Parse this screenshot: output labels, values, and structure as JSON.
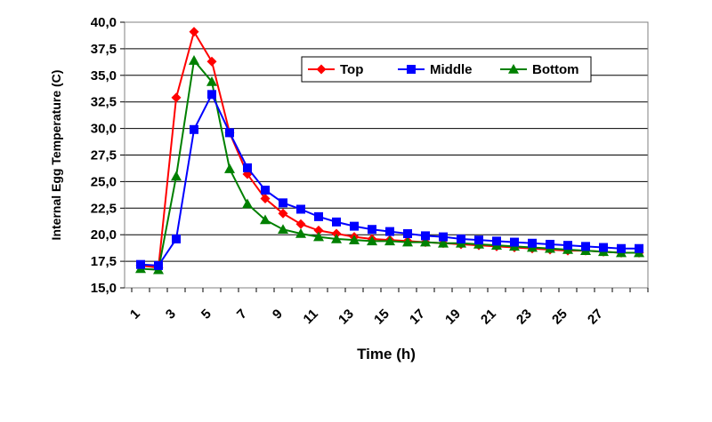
{
  "chart_data": {
    "type": "line",
    "title": "",
    "xlabel": "Time (h)",
    "ylabel": "Internal Egg Temperature (C)",
    "x": [
      1,
      2,
      3,
      4,
      5,
      6,
      7,
      8,
      9,
      10,
      11,
      12,
      13,
      14,
      15,
      16,
      17,
      18,
      19,
      20,
      21,
      22,
      23,
      24,
      25,
      26,
      27,
      28,
      29
    ],
    "x_tick_labels": [
      "1",
      "3",
      "5",
      "7",
      "9",
      "11",
      "13",
      "15",
      "17",
      "19",
      "21",
      "23",
      "25",
      "27"
    ],
    "x_tick_values": [
      1,
      3,
      5,
      7,
      9,
      11,
      13,
      15,
      17,
      19,
      21,
      23,
      25,
      27
    ],
    "xlim": [
      1,
      29
    ],
    "ylim": [
      15,
      40
    ],
    "y_tick_values": [
      15,
      17.5,
      20,
      22.5,
      25,
      27.5,
      30,
      32.5,
      35,
      37.5,
      40
    ],
    "y_tick_labels": [
      "15,0",
      "17,5",
      "20,0",
      "22,5",
      "25,0",
      "27,5",
      "30,0",
      "32,5",
      "35,0",
      "37,5",
      "40,0"
    ],
    "grid": "horizontal",
    "legend_position": "top-right",
    "series": [
      {
        "name": "Top",
        "color": "#ff0000",
        "marker": "diamond",
        "values": [
          17.1,
          16.9,
          32.9,
          39.1,
          36.3,
          29.6,
          25.7,
          23.4,
          22.0,
          21.0,
          20.4,
          20.1,
          19.8,
          19.6,
          19.5,
          19.4,
          19.3,
          19.2,
          19.1,
          19.0,
          18.9,
          18.8,
          18.7,
          18.6,
          18.5,
          18.5,
          18.4,
          18.3,
          18.3
        ]
      },
      {
        "name": "Middle",
        "color": "#0000ff",
        "marker": "square",
        "values": [
          17.2,
          17.1,
          19.6,
          29.9,
          33.2,
          29.6,
          26.3,
          24.2,
          23.0,
          22.4,
          21.7,
          21.2,
          20.8,
          20.5,
          20.3,
          20.1,
          19.9,
          19.8,
          19.6,
          19.5,
          19.4,
          19.3,
          19.2,
          19.1,
          19.0,
          18.9,
          18.8,
          18.7,
          18.7
        ]
      },
      {
        "name": "Bottom",
        "color": "#008000",
        "marker": "triangle",
        "values": [
          16.8,
          16.7,
          25.5,
          36.4,
          34.4,
          26.2,
          22.9,
          21.4,
          20.5,
          20.1,
          19.8,
          19.6,
          19.5,
          19.4,
          19.4,
          19.3,
          19.3,
          19.2,
          19.2,
          19.1,
          19.0,
          18.9,
          18.8,
          18.7,
          18.6,
          18.5,
          18.4,
          18.3,
          18.3
        ]
      }
    ]
  }
}
